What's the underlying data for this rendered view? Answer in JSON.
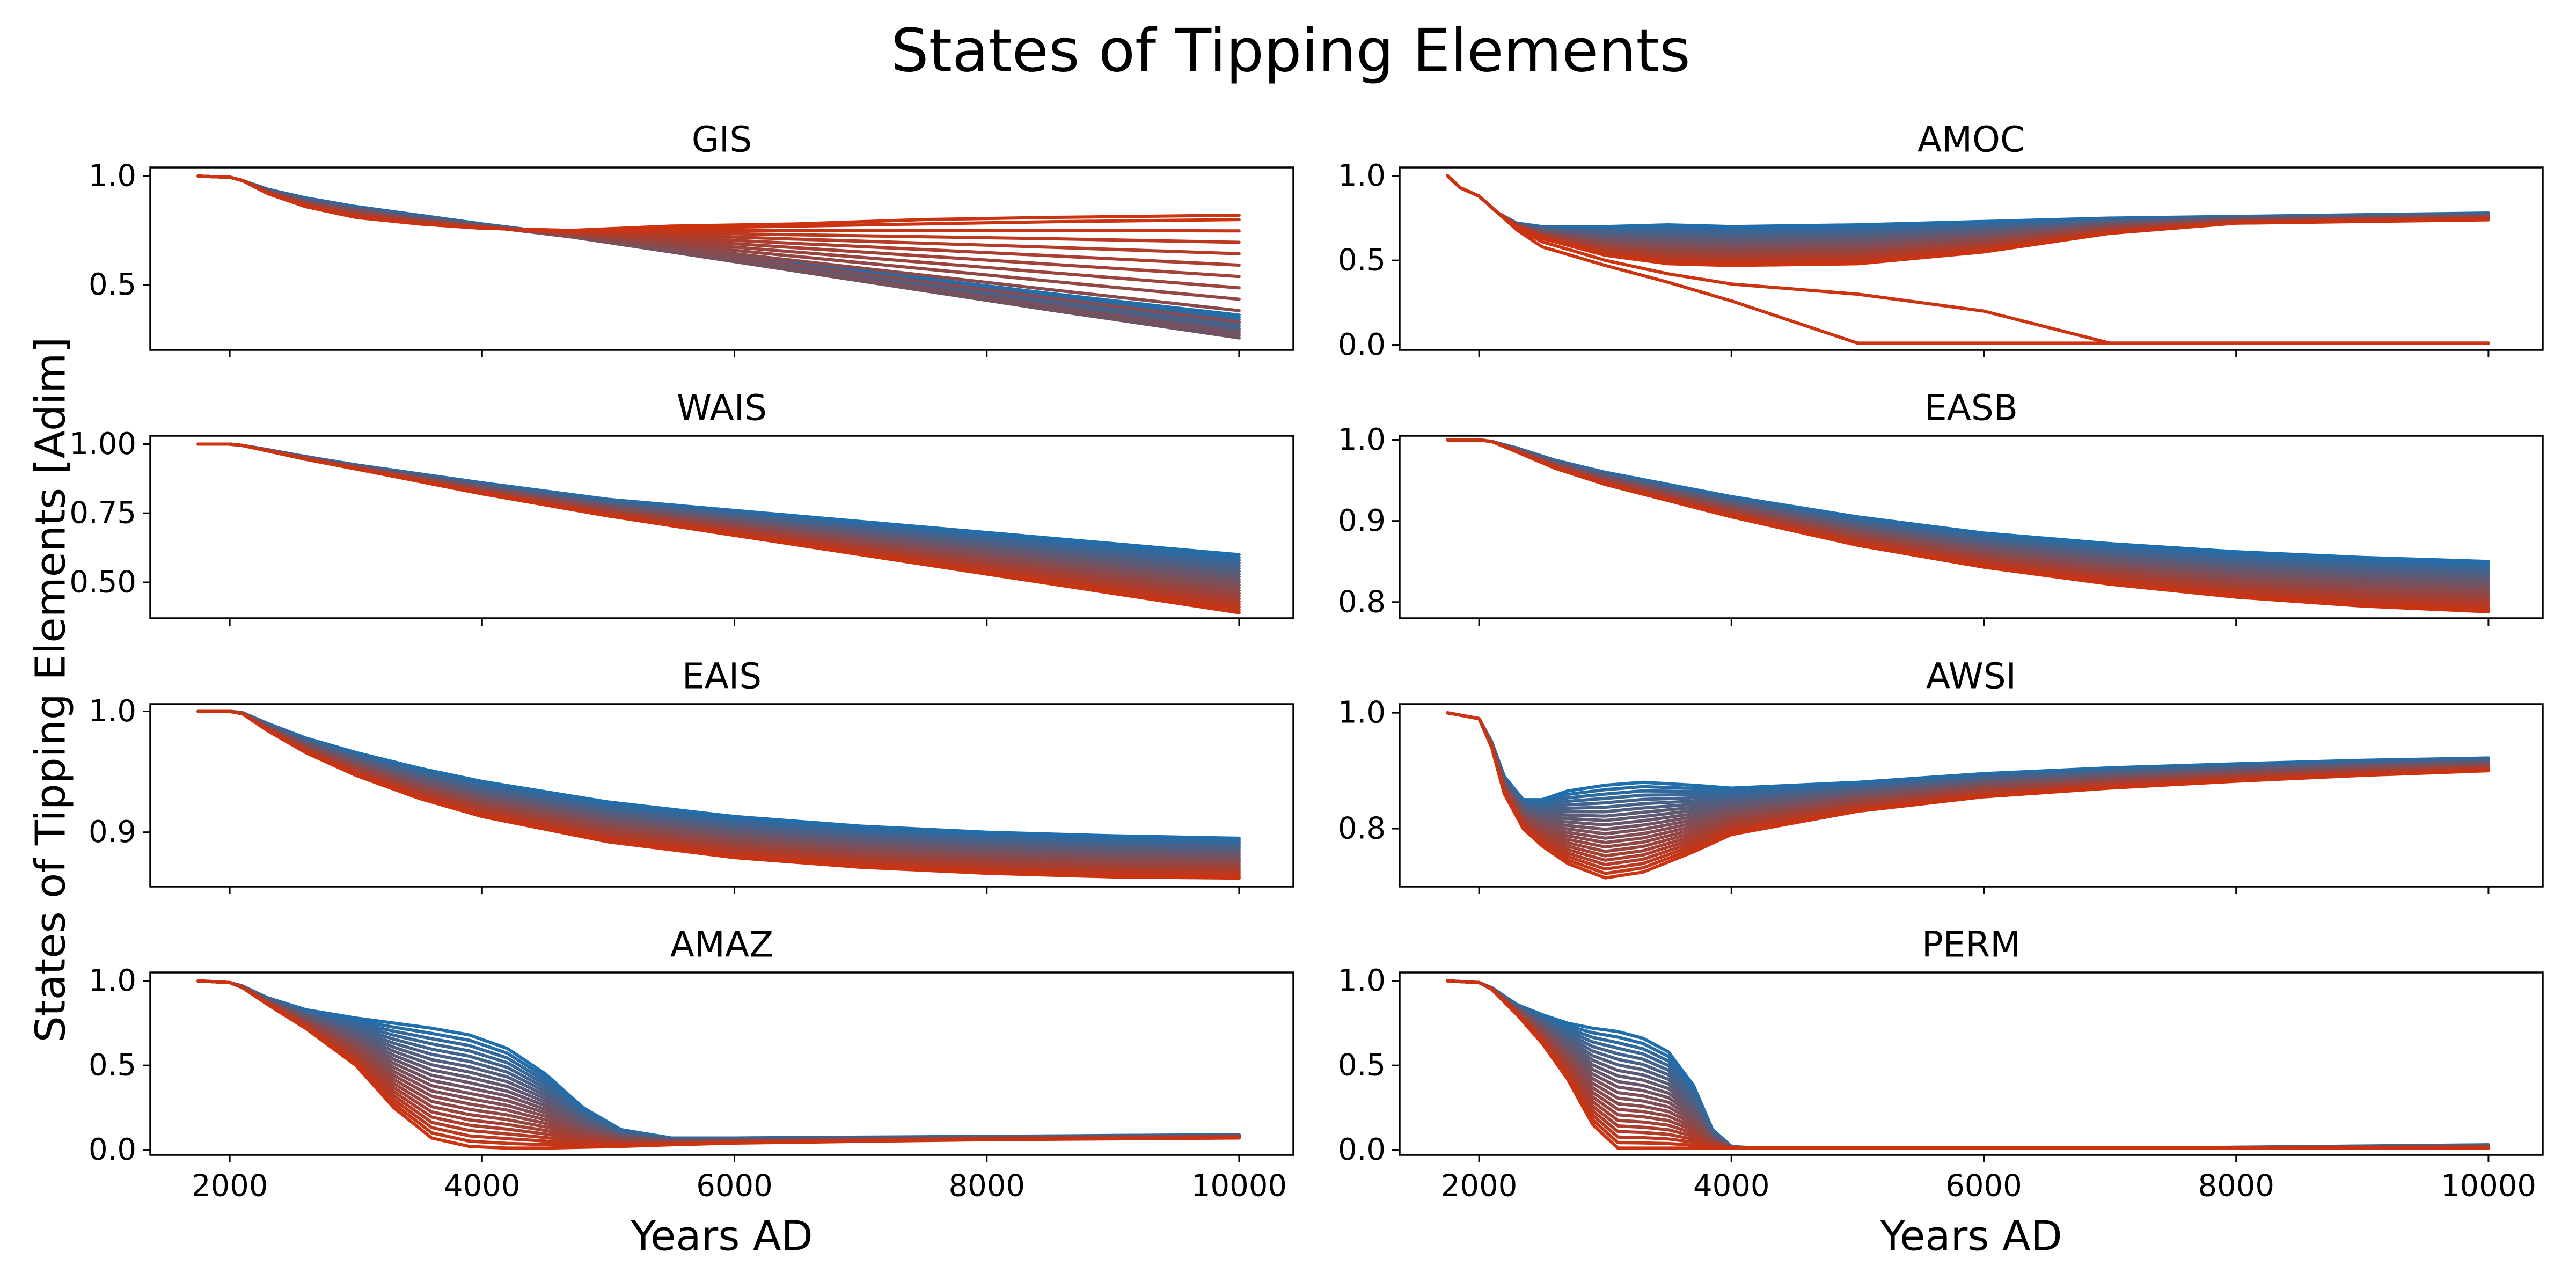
{
  "figure": {
    "title": "States of Tipping Elements",
    "ylabel": "States of Tipping Elements [Adim]",
    "xlabel": "Years AD"
  },
  "colors": {
    "start": "#1f6fad",
    "end": "#cc3311",
    "axes": "#000000",
    "background": "#ffffff"
  },
  "chart_data": [
    {
      "type": "line",
      "title": "GIS",
      "xlabel": "",
      "ylabel": "",
      "xlim": [
        1370,
        10430
      ],
      "ylim": [
        0.2,
        1.04
      ],
      "xticks": [
        2000,
        4000,
        6000,
        8000,
        10000
      ],
      "xticklabels": [
        "",
        "",
        "",
        "",
        ""
      ],
      "yticks": [
        0.5,
        1.0
      ],
      "yticklabels": [
        "0.5",
        "1.0"
      ],
      "x": [
        1750,
        2000,
        2100,
        2300,
        2600,
        3000,
        3500,
        4000,
        4700,
        5500,
        6500,
        7500,
        8500,
        10000
      ],
      "series_count": 22,
      "series_first": [
        1.0,
        0.995,
        0.98,
        0.94,
        0.9,
        0.86,
        0.82,
        0.78,
        0.73,
        0.67,
        0.6,
        0.53,
        0.46,
        0.36
      ],
      "series_last": [
        1.0,
        0.995,
        0.98,
        0.92,
        0.86,
        0.81,
        0.78,
        0.76,
        0.75,
        0.76,
        0.77,
        0.78,
        0.79,
        0.8
      ],
      "series_mid": [
        1.0,
        0.995,
        0.98,
        0.93,
        0.88,
        0.84,
        0.8,
        0.77,
        0.72,
        0.65,
        0.56,
        0.47,
        0.38,
        0.25
      ],
      "extra_series": [
        {
          "values": [
            1.0,
            0.995,
            0.98,
            0.92,
            0.86,
            0.81,
            0.78,
            0.76,
            0.75,
            0.77,
            0.78,
            0.8,
            0.81,
            0.82
          ]
        }
      ]
    },
    {
      "type": "line",
      "title": "AMOC",
      "xlabel": "",
      "ylabel": "",
      "xlim": [
        1370,
        10430
      ],
      "ylim": [
        -0.03,
        1.05
      ],
      "xticks": [
        2000,
        4000,
        6000,
        8000,
        10000
      ],
      "xticklabels": [
        "",
        "",
        "",
        "",
        ""
      ],
      "yticks": [
        0.0,
        0.5,
        1.0
      ],
      "yticklabels": [
        "0.0",
        "0.5",
        "1.0"
      ],
      "x": [
        1750,
        1850,
        2000,
        2150,
        2300,
        2500,
        3000,
        3500,
        4000,
        5000,
        6000,
        7000,
        8000,
        9000,
        10000
      ],
      "series_count": 22,
      "series_first": [
        1.0,
        0.93,
        0.88,
        0.78,
        0.72,
        0.7,
        0.7,
        0.71,
        0.7,
        0.71,
        0.73,
        0.75,
        0.76,
        0.77,
        0.78
      ],
      "series_last": [
        1.0,
        0.93,
        0.88,
        0.78,
        0.7,
        0.63,
        0.53,
        0.48,
        0.47,
        0.48,
        0.55,
        0.66,
        0.72,
        0.73,
        0.74
      ],
      "extra_series": [
        {
          "values": [
            1.0,
            0.93,
            0.88,
            0.78,
            0.69,
            0.61,
            0.5,
            0.42,
            0.36,
            0.3,
            0.2,
            0.01,
            0.01,
            0.01,
            0.01
          ]
        },
        {
          "values": [
            1.0,
            0.93,
            0.88,
            0.78,
            0.68,
            0.58,
            0.47,
            0.37,
            0.26,
            0.01,
            0.01,
            0.01,
            0.01,
            0.01,
            0.01
          ]
        }
      ]
    },
    {
      "type": "line",
      "title": "WAIS",
      "xlabel": "",
      "ylabel": "",
      "xlim": [
        1370,
        10430
      ],
      "ylim": [
        0.37,
        1.03
      ],
      "xticks": [
        2000,
        4000,
        6000,
        8000,
        10000
      ],
      "xticklabels": [
        "",
        "",
        "",
        "",
        ""
      ],
      "yticks": [
        0.5,
        0.75,
        1.0
      ],
      "yticklabels": [
        "0.50",
        "0.75",
        "1.00"
      ],
      "x": [
        1750,
        2000,
        2100,
        2300,
        2600,
        3000,
        4000,
        5000,
        6000,
        7000,
        8000,
        9000,
        10000
      ],
      "series_count": 22,
      "series_first": [
        1.0,
        1.0,
        0.995,
        0.98,
        0.955,
        0.925,
        0.86,
        0.8,
        0.76,
        0.72,
        0.68,
        0.64,
        0.6
      ],
      "series_last": [
        1.0,
        1.0,
        0.995,
        0.975,
        0.945,
        0.91,
        0.82,
        0.74,
        0.67,
        0.6,
        0.53,
        0.46,
        0.39
      ]
    },
    {
      "type": "line",
      "title": "EASB",
      "xlabel": "",
      "ylabel": "",
      "xlim": [
        1370,
        10430
      ],
      "ylim": [
        0.78,
        1.005
      ],
      "xticks": [
        2000,
        4000,
        6000,
        8000,
        10000
      ],
      "xticklabels": [
        "",
        "",
        "",
        "",
        ""
      ],
      "yticks": [
        0.8,
        0.9,
        1.0
      ],
      "yticklabels": [
        "0.8",
        "0.9",
        "1.0"
      ],
      "x": [
        1750,
        2000,
        2100,
        2300,
        2600,
        3000,
        3500,
        4000,
        5000,
        6000,
        7000,
        8000,
        9000,
        10000
      ],
      "series_count": 22,
      "series_first": [
        1.0,
        1.0,
        0.998,
        0.99,
        0.975,
        0.96,
        0.945,
        0.93,
        0.905,
        0.885,
        0.872,
        0.862,
        0.855,
        0.85
      ],
      "series_last": [
        1.0,
        1.0,
        0.998,
        0.985,
        0.965,
        0.945,
        0.925,
        0.905,
        0.87,
        0.843,
        0.822,
        0.806,
        0.795,
        0.788
      ]
    },
    {
      "type": "line",
      "title": "EAIS",
      "xlabel": "",
      "ylabel": "",
      "xlim": [
        1370,
        10430
      ],
      "ylim": [
        0.855,
        1.006
      ],
      "xticks": [
        2000,
        4000,
        6000,
        8000,
        10000
      ],
      "xticklabels": [
        "",
        "",
        "",
        "",
        ""
      ],
      "yticks": [
        0.9,
        1.0
      ],
      "yticklabels": [
        "0.9",
        "1.0"
      ],
      "x": [
        1750,
        2000,
        2100,
        2300,
        2600,
        3000,
        3500,
        4000,
        5000,
        6000,
        7000,
        8000,
        9000,
        10000
      ],
      "series_count": 22,
      "series_first": [
        1.0,
        1.0,
        0.999,
        0.99,
        0.978,
        0.966,
        0.953,
        0.942,
        0.925,
        0.913,
        0.905,
        0.9,
        0.897,
        0.895
      ],
      "series_last": [
        1.0,
        1.0,
        0.998,
        0.984,
        0.966,
        0.947,
        0.928,
        0.913,
        0.892,
        0.879,
        0.871,
        0.866,
        0.863,
        0.862
      ]
    },
    {
      "type": "line",
      "title": "AWSI",
      "xlabel": "",
      "ylabel": "",
      "xlim": [
        1370,
        10430
      ],
      "ylim": [
        0.7,
        1.015
      ],
      "xticks": [
        2000,
        4000,
        6000,
        8000,
        10000
      ],
      "xticklabels": [
        "",
        "",
        "",
        "",
        ""
      ],
      "yticks": [
        0.8,
        1.0
      ],
      "yticklabels": [
        "0.8",
        "1.0"
      ],
      "x": [
        1750,
        2000,
        2100,
        2200,
        2350,
        2500,
        2700,
        3000,
        3300,
        3700,
        4000,
        5000,
        6000,
        7000,
        8000,
        9000,
        10000
      ],
      "series_count": 22,
      "series_first": [
        1.0,
        0.99,
        0.95,
        0.89,
        0.85,
        0.85,
        0.865,
        0.875,
        0.88,
        0.875,
        0.87,
        0.88,
        0.895,
        0.905,
        0.912,
        0.918,
        0.922
      ],
      "series_last": [
        1.0,
        0.99,
        0.94,
        0.86,
        0.8,
        0.77,
        0.74,
        0.715,
        0.725,
        0.76,
        0.79,
        0.83,
        0.855,
        0.87,
        0.882,
        0.892,
        0.9
      ]
    },
    {
      "type": "line",
      "title": "AMAZ",
      "xlabel": "Years AD",
      "ylabel": "",
      "xlim": [
        1370,
        10430
      ],
      "ylim": [
        -0.03,
        1.05
      ],
      "xticks": [
        2000,
        4000,
        6000,
        8000,
        10000
      ],
      "xticklabels": [
        "2000",
        "4000",
        "6000",
        "8000",
        "10000"
      ],
      "yticks": [
        0.0,
        0.5,
        1.0
      ],
      "yticklabels": [
        "0.0",
        "0.5",
        "1.0"
      ],
      "x": [
        1750,
        2000,
        2100,
        2300,
        2600,
        3000,
        3300,
        3600,
        3900,
        4200,
        4500,
        4800,
        5100,
        5500,
        6000,
        7000,
        8000,
        9000,
        10000
      ],
      "series_count": 22,
      "series_first": [
        1.0,
        0.99,
        0.97,
        0.9,
        0.83,
        0.78,
        0.75,
        0.72,
        0.68,
        0.6,
        0.45,
        0.25,
        0.12,
        0.07,
        0.07,
        0.075,
        0.08,
        0.085,
        0.09
      ],
      "series_last": [
        1.0,
        0.99,
        0.96,
        0.86,
        0.72,
        0.5,
        0.25,
        0.07,
        0.02,
        0.01,
        0.01,
        0.015,
        0.02,
        0.03,
        0.04,
        0.05,
        0.06,
        0.065,
        0.07
      ]
    },
    {
      "type": "line",
      "title": "PERM",
      "xlabel": "Years AD",
      "ylabel": "",
      "xlim": [
        1370,
        10430
      ],
      "ylim": [
        -0.03,
        1.05
      ],
      "xticks": [
        2000,
        4000,
        6000,
        8000,
        10000
      ],
      "xticklabels": [
        "2000",
        "4000",
        "6000",
        "8000",
        "10000"
      ],
      "yticks": [
        0.0,
        0.5,
        1.0
      ],
      "yticklabels": [
        "0.0",
        "0.5",
        "1.0"
      ],
      "x": [
        1750,
        2000,
        2100,
        2300,
        2500,
        2700,
        2900,
        3100,
        3300,
        3500,
        3700,
        3850,
        4000,
        4200,
        5000,
        7000,
        8000,
        10000
      ],
      "series_count": 22,
      "series_first": [
        1.0,
        0.99,
        0.96,
        0.86,
        0.8,
        0.75,
        0.72,
        0.7,
        0.66,
        0.58,
        0.38,
        0.12,
        0.02,
        0.01,
        0.01,
        0.01,
        0.015,
        0.03
      ],
      "series_last": [
        1.0,
        0.99,
        0.95,
        0.8,
        0.63,
        0.42,
        0.15,
        0.01,
        0.01,
        0.01,
        0.01,
        0.01,
        0.01,
        0.01,
        0.01,
        0.01,
        0.01,
        0.01
      ]
    }
  ]
}
